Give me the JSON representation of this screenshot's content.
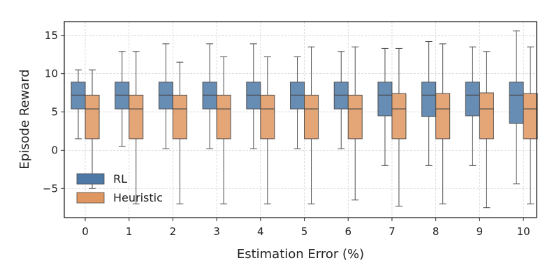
{
  "chart_data": {
    "type": "box",
    "xlabel": "Estimation Error (%)",
    "ylabel": "Episode Reward",
    "categories": [
      "0",
      "1",
      "2",
      "3",
      "4",
      "5",
      "6",
      "7",
      "8",
      "9",
      "10"
    ],
    "ylim": [
      -8.8,
      16.8
    ],
    "yticks": [
      -5,
      0,
      5,
      10,
      15
    ],
    "ytick_labels": [
      "−5",
      "0",
      "5",
      "10",
      "15"
    ],
    "grid": true,
    "legend_position": "lower-left",
    "series": [
      {
        "name": "RL",
        "color": "#4e79a7",
        "boxes": [
          {
            "whislo": 1.5,
            "q1": 5.4,
            "med": 7.2,
            "q3": 8.9,
            "whishi": 10.5
          },
          {
            "whislo": 0.5,
            "q1": 5.4,
            "med": 7.2,
            "q3": 8.9,
            "whishi": 12.9
          },
          {
            "whislo": 0.2,
            "q1": 5.4,
            "med": 7.2,
            "q3": 8.9,
            "whishi": 13.9
          },
          {
            "whislo": 0.2,
            "q1": 5.4,
            "med": 7.2,
            "q3": 8.9,
            "whishi": 13.9
          },
          {
            "whislo": 0.2,
            "q1": 5.4,
            "med": 7.2,
            "q3": 8.9,
            "whishi": 13.9
          },
          {
            "whislo": 0.2,
            "q1": 5.4,
            "med": 7.2,
            "q3": 8.9,
            "whishi": 12.2
          },
          {
            "whislo": 0.2,
            "q1": 5.4,
            "med": 7.2,
            "q3": 8.9,
            "whishi": 12.9
          },
          {
            "whislo": -2.0,
            "q1": 4.5,
            "med": 7.2,
            "q3": 8.9,
            "whishi": 13.3
          },
          {
            "whislo": -2.0,
            "q1": 4.4,
            "med": 7.2,
            "q3": 8.9,
            "whishi": 14.2
          },
          {
            "whislo": -2.0,
            "q1": 4.5,
            "med": 7.2,
            "q3": 8.9,
            "whishi": 13.5
          },
          {
            "whislo": -4.4,
            "q1": 3.5,
            "med": 7.2,
            "q3": 8.9,
            "whishi": 15.6
          }
        ]
      },
      {
        "name": "Heuristic",
        "color": "#e0965f",
        "boxes": [
          {
            "whislo": -5.0,
            "q1": 1.5,
            "med": 5.4,
            "q3": 7.2,
            "whishi": 10.5
          },
          {
            "whislo": -7.0,
            "q1": 1.5,
            "med": 5.4,
            "q3": 7.2,
            "whishi": 12.9
          },
          {
            "whislo": -7.0,
            "q1": 1.5,
            "med": 5.4,
            "q3": 7.2,
            "whishi": 11.5
          },
          {
            "whislo": -7.0,
            "q1": 1.5,
            "med": 5.4,
            "q3": 7.2,
            "whishi": 12.2
          },
          {
            "whislo": -7.0,
            "q1": 1.5,
            "med": 5.4,
            "q3": 7.2,
            "whishi": 12.2
          },
          {
            "whislo": -7.0,
            "q1": 1.5,
            "med": 5.4,
            "q3": 7.2,
            "whishi": 13.5
          },
          {
            "whislo": -6.5,
            "q1": 1.5,
            "med": 5.4,
            "q3": 7.2,
            "whishi": 13.5
          },
          {
            "whislo": -7.3,
            "q1": 1.5,
            "med": 5.4,
            "q3": 7.4,
            "whishi": 13.3
          },
          {
            "whislo": -7.0,
            "q1": 1.5,
            "med": 5.4,
            "q3": 7.4,
            "whishi": 13.9
          },
          {
            "whislo": -7.5,
            "q1": 1.5,
            "med": 5.4,
            "q3": 7.5,
            "whishi": 12.9
          },
          {
            "whislo": -7.0,
            "q1": 1.5,
            "med": 5.4,
            "q3": 7.4,
            "whishi": 13.5
          }
        ]
      }
    ]
  }
}
